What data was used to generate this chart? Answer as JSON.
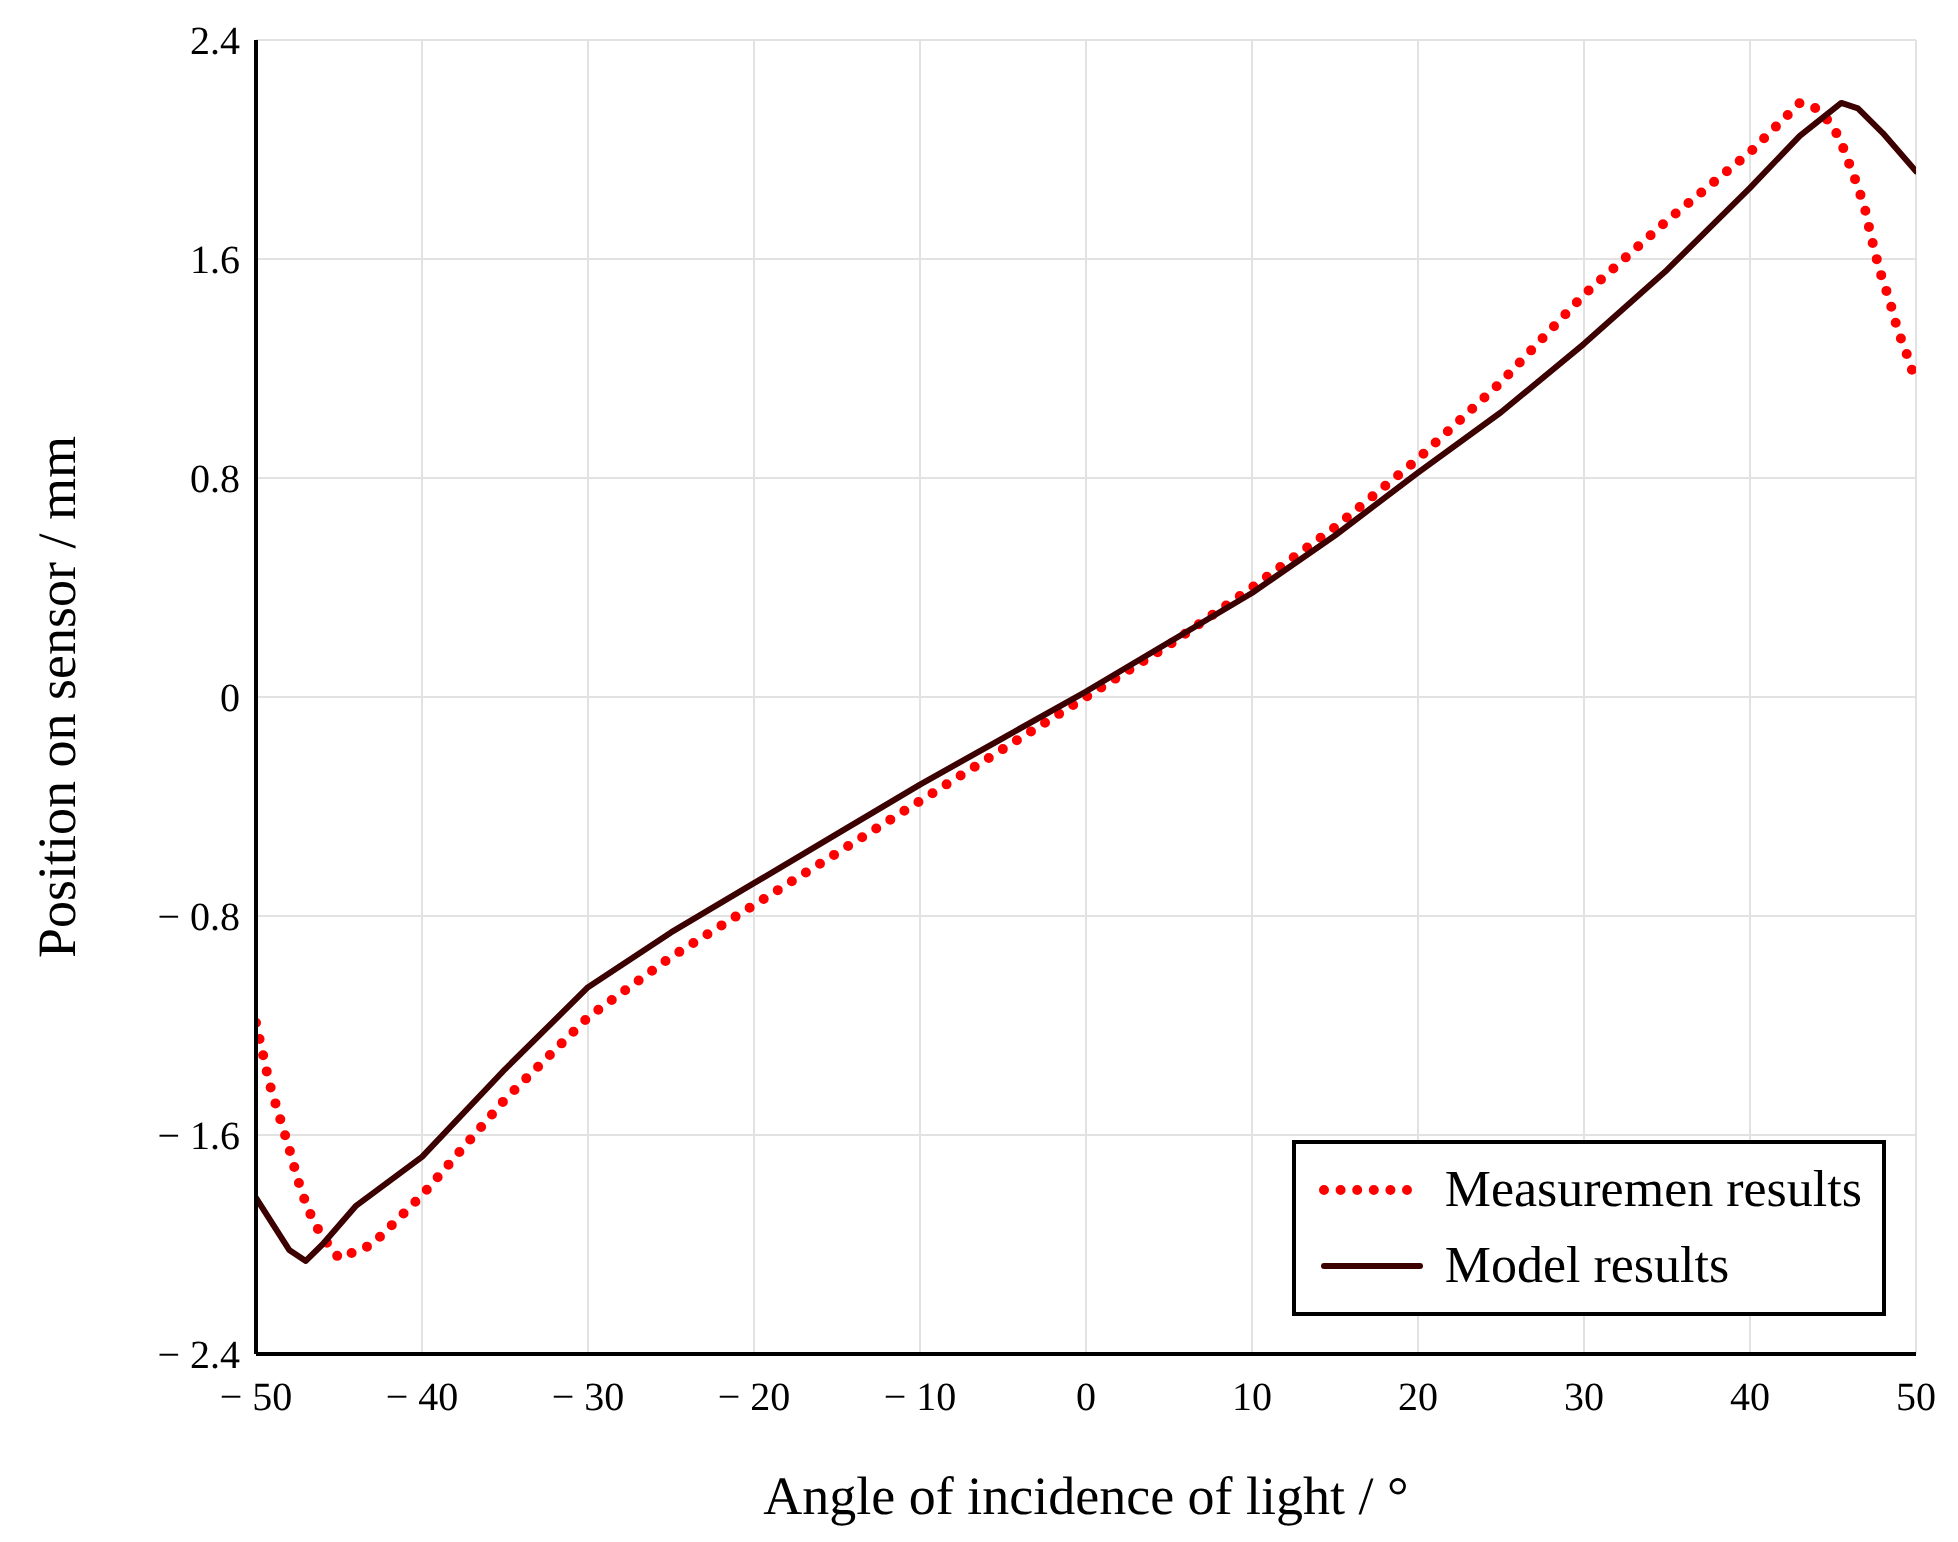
{
  "chart_data": {
    "type": "line",
    "xlabel": "Angle of incidence of light / °",
    "ylabel": "Position on sensor / mm",
    "xlim": [
      -50,
      50
    ],
    "ylim": [
      -2.4,
      2.4
    ],
    "xticks": [
      {
        "value": -50,
        "label": "− 50"
      },
      {
        "value": -40,
        "label": "− 40"
      },
      {
        "value": -30,
        "label": "− 30"
      },
      {
        "value": -20,
        "label": "− 20"
      },
      {
        "value": -10,
        "label": "− 10"
      },
      0,
      10,
      20,
      30,
      40,
      50
    ],
    "yticks": [
      {
        "value": -2.4,
        "label": "− 2.4"
      },
      {
        "value": -1.6,
        "label": "− 1.6"
      },
      {
        "value": -0.8,
        "label": "− 0.8"
      },
      0,
      0.8,
      1.6,
      2.4
    ],
    "grid": true,
    "legend": "bottom right",
    "series": [
      {
        "name": "Measuremen results",
        "color": "#ff0000",
        "line_style": "dotted",
        "x": [
          -50,
          -49.2,
          -48.6,
          -48,
          -47.5,
          -47,
          -46.5,
          -45.9,
          -45,
          -43,
          -40,
          -35,
          -30,
          -25,
          -20,
          -15,
          -10,
          -5,
          0,
          5,
          10,
          15,
          20,
          25,
          30,
          35,
          40,
          42,
          43,
          44,
          44.8,
          45.4,
          45.9,
          46.4,
          46.9,
          47.3,
          47.8,
          48.4,
          48.9,
          49.4,
          50
        ],
        "values": [
          -1.19,
          -1.41,
          -1.53,
          -1.65,
          -1.76,
          -1.85,
          -1.92,
          -1.98,
          -2.05,
          -2.0,
          -1.82,
          -1.47,
          -1.17,
          -0.95,
          -0.76,
          -0.57,
          -0.38,
          -0.19,
          0,
          0.19,
          0.4,
          0.62,
          0.87,
          1.15,
          1.47,
          1.74,
          1.99,
          2.11,
          2.17,
          2.15,
          2.1,
          2.04,
          1.96,
          1.88,
          1.79,
          1.68,
          1.56,
          1.45,
          1.34,
          1.26,
          1.15
        ]
      },
      {
        "name": "Model results",
        "color": "#3c0000",
        "line_style": "solid",
        "x": [
          -50,
          -48,
          -47,
          -46,
          -44,
          -40,
          -35,
          -30,
          -25,
          -20,
          -15,
          -10,
          -5,
          0,
          5,
          10,
          15,
          20,
          25,
          30,
          35,
          40,
          43,
          45.5,
          46.5,
          48,
          50
        ],
        "values": [
          -1.83,
          -2.02,
          -2.06,
          -2.0,
          -1.86,
          -1.68,
          -1.36,
          -1.06,
          -0.86,
          -0.68,
          -0.5,
          -0.32,
          -0.15,
          0.02,
          0.2,
          0.38,
          0.59,
          0.82,
          1.04,
          1.29,
          1.56,
          1.86,
          2.05,
          2.17,
          2.15,
          2.06,
          1.92
        ]
      }
    ]
  }
}
